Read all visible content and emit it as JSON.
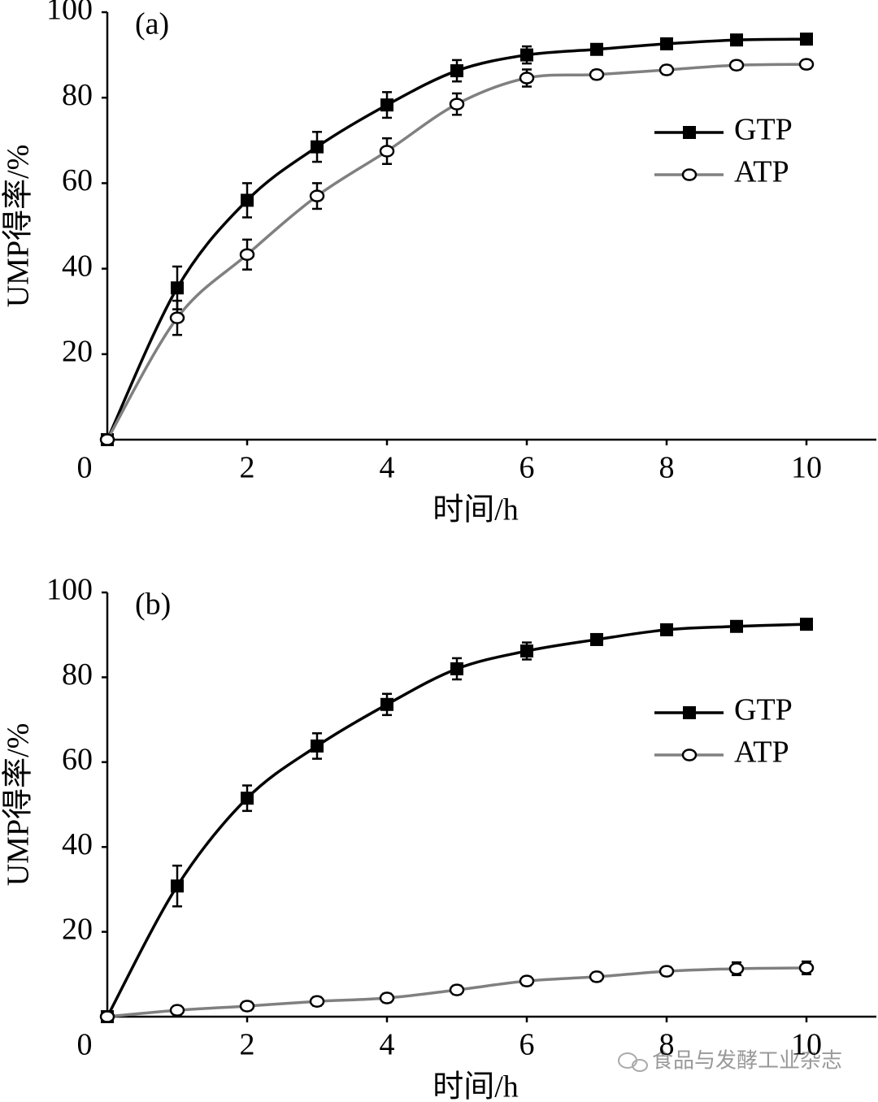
{
  "chart_data": [
    {
      "type": "line",
      "annotation": "(a)",
      "xlabel": "时间/h",
      "ylabel": "UMP得率/%",
      "x": [
        0,
        1,
        2,
        3,
        4,
        5,
        6,
        7,
        8,
        9,
        10
      ],
      "xlim": [
        0,
        11
      ],
      "ylim": [
        0,
        100
      ],
      "xticks": [
        0,
        2,
        4,
        6,
        8,
        10
      ],
      "yticks": [
        20,
        40,
        60,
        80,
        100
      ],
      "legend": "upper right",
      "series": [
        {
          "name": "GTP",
          "color": "#000000",
          "marker": "square",
          "values": [
            0,
            35.5,
            56,
            68.5,
            78.3,
            86.3,
            90,
            91.3,
            92.6,
            93.5,
            93.7
          ],
          "errors": [
            0,
            5,
            4,
            3.5,
            3,
            2.5,
            2,
            1,
            1,
            1,
            1
          ]
        },
        {
          "name": "ATP",
          "color": "#808080",
          "marker": "circle",
          "values": [
            0,
            28.5,
            43.3,
            57,
            67.5,
            78.5,
            84.6,
            85.4,
            86.5,
            87.6,
            87.8
          ],
          "errors": [
            0,
            4,
            3.5,
            3,
            3,
            2.5,
            2,
            1,
            1,
            1,
            1
          ]
        }
      ]
    },
    {
      "type": "line",
      "annotation": "(b)",
      "xlabel": "时间/h",
      "ylabel": "UMP得率/%",
      "x": [
        0,
        1,
        2,
        3,
        4,
        5,
        6,
        7,
        8,
        9,
        10
      ],
      "xlim": [
        0,
        11
      ],
      "ylim": [
        0,
        100
      ],
      "xticks": [
        0,
        2,
        4,
        6,
        8,
        10
      ],
      "yticks": [
        20,
        40,
        60,
        80,
        100
      ],
      "legend": "upper right",
      "series": [
        {
          "name": "GTP",
          "color": "#000000",
          "marker": "square",
          "values": [
            0,
            30.8,
            51.5,
            63.8,
            73.6,
            82,
            86.2,
            88.9,
            91.2,
            92,
            92.5
          ],
          "errors": [
            0,
            4.8,
            3,
            3,
            2.5,
            2.5,
            2,
            1,
            1,
            1,
            1
          ]
        },
        {
          "name": "ATP",
          "color": "#808080",
          "marker": "circle",
          "values": [
            0,
            1.5,
            2.5,
            3.6,
            4.4,
            6.3,
            8.4,
            9.4,
            10.7,
            11.3,
            11.5
          ],
          "errors": [
            0,
            1,
            1,
            1,
            1,
            1,
            1,
            1,
            1,
            1.5,
            1.5
          ]
        }
      ]
    }
  ],
  "watermark": "食品与发酵工业杂志"
}
